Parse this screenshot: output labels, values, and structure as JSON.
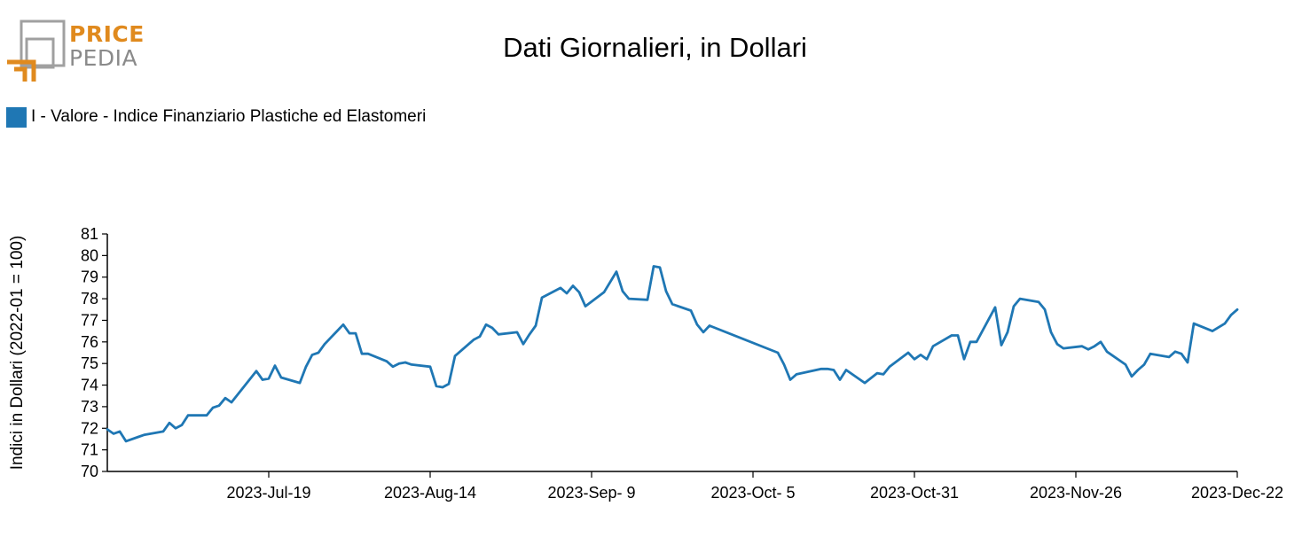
{
  "logo": {
    "word1": "PRICE",
    "word2": "PEDIA",
    "color_primary": "#e08a1e",
    "color_secondary": "#8a8a8a"
  },
  "chart_data": {
    "type": "line",
    "title": "Dati Giornalieri, in Dollari",
    "xlabel": "",
    "ylabel": "Indici in Dollari (2022-01 = 100)",
    "ylim": [
      70,
      81
    ],
    "yticks": [
      70,
      71,
      72,
      73,
      74,
      75,
      76,
      77,
      78,
      79,
      80,
      81
    ],
    "xlim": [
      "2023-06-23",
      "2023-12-22"
    ],
    "xtick_labels": [
      "2023-Jul-19",
      "2023-Aug-14",
      "2023-Sep- 9",
      "2023-Oct- 5",
      "2023-Oct-31",
      "2023-Nov-26",
      "2023-Dec-22"
    ],
    "xtick_dates": [
      "2023-07-19",
      "2023-08-14",
      "2023-09-09",
      "2023-10-05",
      "2023-10-31",
      "2023-11-26",
      "2023-12-22"
    ],
    "grid": false,
    "legend_position": "top-left",
    "series": [
      {
        "name": "I - Valore - Indice Finanziario Plastiche ed Elastomeri",
        "color": "#1f77b4",
        "points": [
          [
            "2023-06-23",
            71.95
          ],
          [
            "2023-06-24",
            71.75
          ],
          [
            "2023-06-25",
            71.85
          ],
          [
            "2023-06-26",
            71.4
          ],
          [
            "2023-06-28",
            71.6
          ],
          [
            "2023-06-29",
            71.7
          ],
          [
            "2023-07-02",
            71.85
          ],
          [
            "2023-07-03",
            72.25
          ],
          [
            "2023-07-04",
            72.0
          ],
          [
            "2023-07-05",
            72.15
          ],
          [
            "2023-07-06",
            72.6
          ],
          [
            "2023-07-09",
            72.6
          ],
          [
            "2023-07-10",
            72.95
          ],
          [
            "2023-07-11",
            73.05
          ],
          [
            "2023-07-12",
            73.4
          ],
          [
            "2023-07-13",
            73.2
          ],
          [
            "2023-07-17",
            74.65
          ],
          [
            "2023-07-18",
            74.25
          ],
          [
            "2023-07-19",
            74.3
          ],
          [
            "2023-07-20",
            74.9
          ],
          [
            "2023-07-21",
            74.35
          ],
          [
            "2023-07-24",
            74.1
          ],
          [
            "2023-07-25",
            74.85
          ],
          [
            "2023-07-26",
            75.4
          ],
          [
            "2023-07-27",
            75.5
          ],
          [
            "2023-07-28",
            75.9
          ],
          [
            "2023-07-31",
            76.8
          ],
          [
            "2023-08-01",
            76.4
          ],
          [
            "2023-08-02",
            76.4
          ],
          [
            "2023-08-03",
            75.45
          ],
          [
            "2023-08-04",
            75.45
          ],
          [
            "2023-08-07",
            75.1
          ],
          [
            "2023-08-08",
            74.85
          ],
          [
            "2023-08-09",
            75.0
          ],
          [
            "2023-08-10",
            75.05
          ],
          [
            "2023-08-11",
            74.95
          ],
          [
            "2023-08-14",
            74.85
          ],
          [
            "2023-08-15",
            73.95
          ],
          [
            "2023-08-16",
            73.9
          ],
          [
            "2023-08-17",
            74.05
          ],
          [
            "2023-08-18",
            75.35
          ],
          [
            "2023-08-21",
            76.1
          ],
          [
            "2023-08-22",
            76.25
          ],
          [
            "2023-08-23",
            76.8
          ],
          [
            "2023-08-24",
            76.65
          ],
          [
            "2023-08-25",
            76.35
          ],
          [
            "2023-08-28",
            76.45
          ],
          [
            "2023-08-29",
            75.9
          ],
          [
            "2023-08-30",
            76.35
          ],
          [
            "2023-08-31",
            76.75
          ],
          [
            "2023-09-01",
            78.05
          ],
          [
            "2023-09-04",
            78.5
          ],
          [
            "2023-09-05",
            78.25
          ],
          [
            "2023-09-06",
            78.6
          ],
          [
            "2023-09-07",
            78.3
          ],
          [
            "2023-09-08",
            77.65
          ],
          [
            "2023-09-11",
            78.3
          ],
          [
            "2023-09-13",
            79.25
          ],
          [
            "2023-09-14",
            78.35
          ],
          [
            "2023-09-15",
            78.0
          ],
          [
            "2023-09-18",
            77.95
          ],
          [
            "2023-09-19",
            79.5
          ],
          [
            "2023-09-20",
            79.45
          ],
          [
            "2023-09-21",
            78.35
          ],
          [
            "2023-09-22",
            77.75
          ],
          [
            "2023-09-25",
            77.45
          ],
          [
            "2023-09-26",
            76.8
          ],
          [
            "2023-09-27",
            76.45
          ],
          [
            "2023-09-28",
            76.75
          ],
          [
            "2023-10-09",
            75.5
          ],
          [
            "2023-10-10",
            74.95
          ],
          [
            "2023-10-11",
            74.25
          ],
          [
            "2023-10-12",
            74.5
          ],
          [
            "2023-10-16",
            74.75
          ],
          [
            "2023-10-17",
            74.75
          ],
          [
            "2023-10-18",
            74.7
          ],
          [
            "2023-10-19",
            74.25
          ],
          [
            "2023-10-20",
            74.7
          ],
          [
            "2023-10-23",
            74.1
          ],
          [
            "2023-10-25",
            74.55
          ],
          [
            "2023-10-26",
            74.5
          ],
          [
            "2023-10-27",
            74.85
          ],
          [
            "2023-10-30",
            75.5
          ],
          [
            "2023-10-31",
            75.2
          ],
          [
            "2023-11-01",
            75.4
          ],
          [
            "2023-11-02",
            75.2
          ],
          [
            "2023-11-03",
            75.8
          ],
          [
            "2023-11-06",
            76.3
          ],
          [
            "2023-11-07",
            76.3
          ],
          [
            "2023-11-08",
            75.2
          ],
          [
            "2023-11-09",
            76.0
          ],
          [
            "2023-11-10",
            76.0
          ],
          [
            "2023-11-13",
            77.6
          ],
          [
            "2023-11-14",
            75.85
          ],
          [
            "2023-11-15",
            76.45
          ],
          [
            "2023-11-16",
            77.65
          ],
          [
            "2023-11-17",
            78.0
          ],
          [
            "2023-11-20",
            77.85
          ],
          [
            "2023-11-21",
            77.5
          ],
          [
            "2023-11-22",
            76.45
          ],
          [
            "2023-11-23",
            75.9
          ],
          [
            "2023-11-24",
            75.7
          ],
          [
            "2023-11-27",
            75.8
          ],
          [
            "2023-11-28",
            75.65
          ],
          [
            "2023-11-29",
            75.8
          ],
          [
            "2023-11-30",
            76.0
          ],
          [
            "2023-12-01",
            75.55
          ],
          [
            "2023-12-04",
            74.95
          ],
          [
            "2023-12-05",
            74.4
          ],
          [
            "2023-12-06",
            74.7
          ],
          [
            "2023-12-07",
            74.95
          ],
          [
            "2023-12-08",
            75.45
          ],
          [
            "2023-12-11",
            75.3
          ],
          [
            "2023-12-12",
            75.55
          ],
          [
            "2023-12-13",
            75.45
          ],
          [
            "2023-12-14",
            75.05
          ],
          [
            "2023-12-15",
            76.85
          ],
          [
            "2023-12-18",
            76.5
          ],
          [
            "2023-12-20",
            76.85
          ],
          [
            "2023-12-21",
            77.25
          ],
          [
            "2023-12-22",
            77.5
          ]
        ]
      }
    ]
  }
}
